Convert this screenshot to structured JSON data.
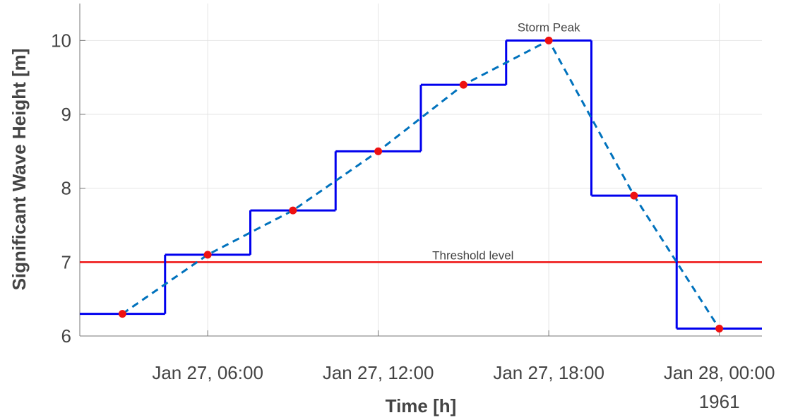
{
  "chart_data": {
    "type": "line",
    "x": [
      "1961-01-27 03:00",
      "1961-01-27 06:00",
      "1961-01-27 09:00",
      "1961-01-27 12:00",
      "1961-01-27 15:00",
      "1961-01-27 18:00",
      "1961-01-27 21:00",
      "1961-01-28 00:00"
    ],
    "values": [
      6.3,
      7.1,
      7.7,
      8.5,
      9.4,
      10.0,
      7.9,
      6.1
    ],
    "line_color": "#0072bd",
    "line_style": "dashed",
    "step_color": "#0000ee",
    "step": "mid",
    "marker_color": "#ee1111",
    "xlim": [
      "1961-01-27 01:30",
      "1961-01-28 01:30"
    ],
    "xticks": [
      {
        "value": "1961-01-27 06:00",
        "label": "Jan 27, 06:00"
      },
      {
        "value": "1961-01-27 12:00",
        "label": "Jan 27, 12:00"
      },
      {
        "value": "1961-01-27 18:00",
        "label": "Jan 27, 18:00"
      },
      {
        "value": "1961-01-28 00:00",
        "label": "Jan 28, 00:00"
      }
    ],
    "x_secondary_label": "1961",
    "ylim": [
      6,
      10.5
    ],
    "yticks": [
      6,
      7,
      8,
      9,
      10
    ],
    "grid": true,
    "xlabel": "Time [h]",
    "ylabel": "Significant Wave Height [m]",
    "threshold": {
      "value": 7,
      "color": "#ee1111",
      "label": "Threshold level",
      "label_x": "1961-01-27 15:20"
    },
    "annotations": [
      {
        "text": "Storm Peak",
        "x": "1961-01-27 18:00",
        "y": 10.18
      }
    ]
  }
}
